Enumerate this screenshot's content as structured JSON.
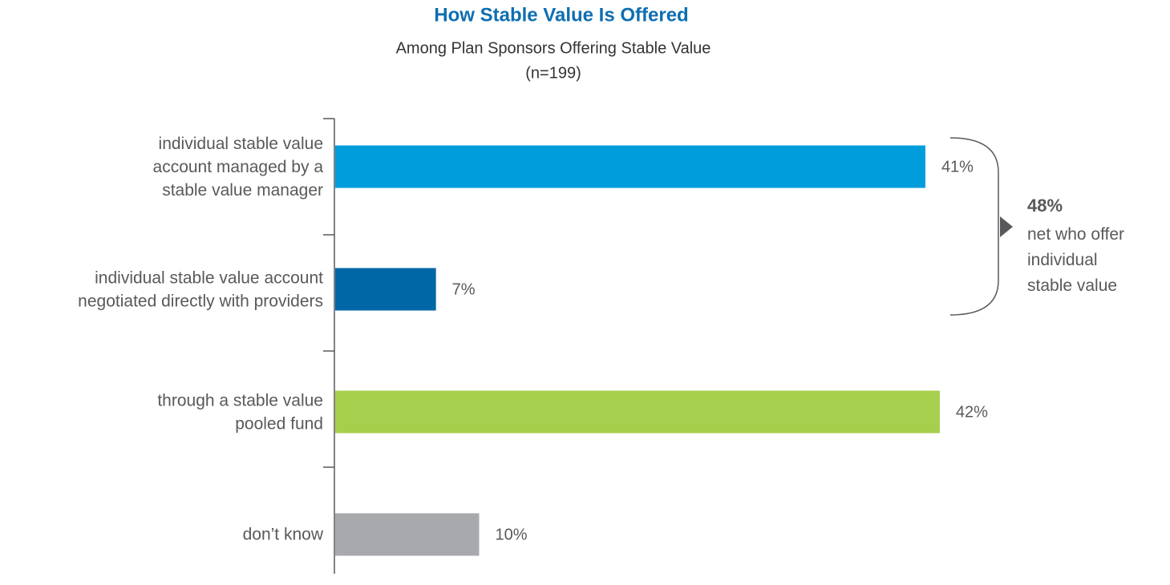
{
  "chart_data": {
    "type": "bar",
    "orientation": "horizontal",
    "title": "How Stable Value Is Offered",
    "subtitle": "Among Plan Sponsors Offering Stable Value",
    "sample_size": "(n=199)",
    "categories": [
      "individual stable value\naccount managed by a\nstable value manager",
      "individual stable value account\nnegotiated directly with providers",
      "through a stable value\npooled fund",
      "don’t know"
    ],
    "values": [
      41,
      7,
      42,
      10
    ],
    "value_labels": [
      "41%",
      "7%",
      "42%",
      "10%"
    ],
    "colors": [
      "#009ddc",
      "#0067a6",
      "#a5cf4c",
      "#a7a9ac"
    ],
    "annotation": {
      "value": 48,
      "value_label": "48%",
      "text": "net who offer\nindividual\nstable value"
    }
  }
}
